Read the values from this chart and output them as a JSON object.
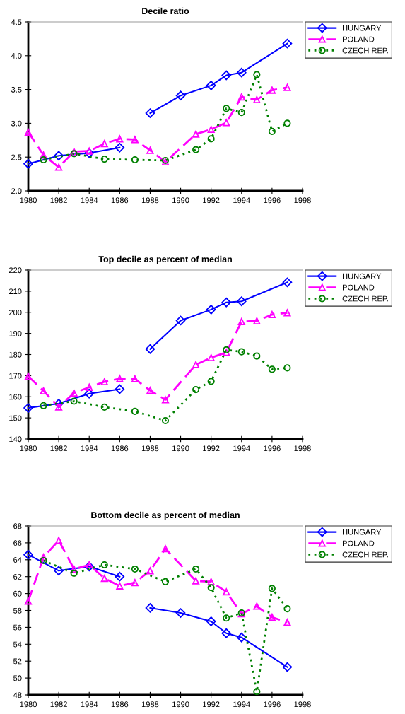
{
  "chart_data": [
    {
      "type": "line",
      "title": "Decile ratio",
      "xlim": [
        1980,
        1998
      ],
      "xticks": [
        1980,
        1982,
        1984,
        1986,
        1988,
        1990,
        1992,
        1994,
        1996,
        1998
      ],
      "ylim": [
        2.0,
        4.5
      ],
      "yticks": [
        {
          "value": 2.0,
          "label": "2.0"
        },
        {
          "value": 2.5,
          "label": "2.5"
        },
        {
          "value": 3.0,
          "label": "3.0"
        },
        {
          "value": 3.5,
          "label": "3.5"
        },
        {
          "value": 4.0,
          "label": "4.0"
        },
        {
          "value": 4.5,
          "label": "4.5"
        }
      ],
      "grid": false,
      "legend": "right",
      "series": [
        {
          "name": "HUNGARY",
          "color": "#0000ff",
          "marker": "diamond",
          "line_style": "solid",
          "x": [
            1980,
            1982,
            1984,
            1986,
            1987,
            1988,
            1990,
            1992,
            1993,
            1994,
            1997
          ],
          "values": [
            2.4,
            2.52,
            2.56,
            2.64,
            null,
            3.15,
            3.41,
            3.56,
            3.71,
            3.75,
            4.18
          ]
        },
        {
          "name": "POLAND",
          "color": "#ff00ff",
          "marker": "triangle",
          "line_style": "dashed",
          "x": [
            1980,
            1981,
            1982,
            1983,
            1984,
            1985,
            1986,
            1987,
            1988,
            1989,
            1991,
            1992,
            1993,
            1994,
            1995,
            1996,
            1997
          ],
          "values": [
            2.87,
            2.53,
            2.35,
            2.58,
            2.59,
            2.7,
            2.77,
            2.76,
            2.6,
            2.43,
            2.84,
            2.91,
            3.01,
            3.39,
            3.35,
            3.49,
            3.53
          ]
        },
        {
          "name": "CZECH REP.",
          "color": "#008000",
          "marker": "circle",
          "line_style": "dotted",
          "x": [
            1981,
            1983,
            1985,
            1987,
            1989,
            1991,
            1992,
            1993,
            1994,
            1995,
            1996,
            1997
          ],
          "values": [
            2.46,
            2.55,
            2.47,
            2.46,
            2.45,
            2.61,
            2.77,
            3.22,
            3.16,
            3.72,
            2.88,
            3.0
          ]
        }
      ]
    },
    {
      "type": "line",
      "title": "Top decile as percent of median",
      "xlim": [
        1980,
        1998
      ],
      "xticks": [
        1980,
        1982,
        1984,
        1986,
        1988,
        1990,
        1992,
        1994,
        1996,
        1998
      ],
      "ylim": [
        140,
        220
      ],
      "yticks": [
        140,
        150,
        160,
        170,
        180,
        190,
        200,
        210,
        220
      ],
      "grid": false,
      "legend": "right",
      "series": [
        {
          "name": "HUNGARY",
          "color": "#0000ff",
          "marker": "diamond",
          "line_style": "solid",
          "x": [
            1980,
            1982,
            1984,
            1986,
            1987,
            1988,
            1990,
            1992,
            1993,
            1994,
            1997
          ],
          "values": [
            154.7,
            156.8,
            161.5,
            163.6,
            null,
            182.6,
            196.1,
            201.3,
            204.7,
            205.2,
            214.2
          ]
        },
        {
          "name": "POLAND",
          "color": "#ff00ff",
          "marker": "triangle",
          "line_style": "dashed",
          "x": [
            1980,
            1981,
            1982,
            1983,
            1984,
            1985,
            1986,
            1987,
            1988,
            1989,
            1991,
            1992,
            1993,
            1994,
            1995,
            1996,
            1997
          ],
          "values": [
            169.7,
            162.8,
            155.2,
            161.8,
            164.5,
            167.1,
            168.6,
            168.5,
            163.0,
            158.6,
            175.2,
            178.5,
            181.0,
            195.6,
            195.9,
            198.9,
            199.8
          ]
        },
        {
          "name": "CZECH REP.",
          "color": "#008000",
          "marker": "circle",
          "line_style": "dotted",
          "x": [
            1981,
            1983,
            1985,
            1987,
            1989,
            1991,
            1992,
            1993,
            1994,
            1995,
            1996,
            1997
          ],
          "values": [
            155.8,
            157.9,
            155.1,
            153.1,
            148.7,
            163.4,
            167.3,
            182.2,
            181.3,
            179.3,
            173.0,
            173.7
          ]
        }
      ]
    },
    {
      "type": "line",
      "title": "Bottom decile as percent of median",
      "xlim": [
        1980,
        1998
      ],
      "xticks": [
        1980,
        1982,
        1984,
        1986,
        1988,
        1990,
        1992,
        1994,
        1996,
        1998
      ],
      "ylim": [
        48,
        68
      ],
      "yticks": [
        48,
        50,
        52,
        54,
        56,
        58,
        60,
        62,
        64,
        66,
        68
      ],
      "grid": false,
      "legend": "right",
      "series": [
        {
          "name": "HUNGARY",
          "color": "#0000ff",
          "marker": "diamond",
          "line_style": "solid",
          "x": [
            1980,
            1982,
            1984,
            1986,
            1987,
            1988,
            1990,
            1992,
            1993,
            1994,
            1997
          ],
          "values": [
            64.6,
            62.7,
            63.2,
            62.0,
            null,
            58.3,
            57.7,
            56.7,
            55.3,
            54.8,
            51.3
          ]
        },
        {
          "name": "POLAND",
          "color": "#ff00ff",
          "marker": "triangle",
          "line_style": "dashed",
          "x": [
            1980,
            1981,
            1982,
            1983,
            1984,
            1985,
            1986,
            1987,
            1988,
            1989,
            1991,
            1992,
            1993,
            1994,
            1995,
            1996,
            1997
          ],
          "values": [
            59.1,
            64.3,
            66.3,
            62.9,
            63.4,
            61.8,
            60.9,
            61.3,
            62.7,
            65.3,
            61.5,
            61.4,
            60.2,
            57.6,
            58.5,
            57.2,
            56.6
          ]
        },
        {
          "name": "CZECH REP.",
          "color": "#008000",
          "marker": "circle",
          "line_style": "dotted",
          "x": [
            1981,
            1983,
            1985,
            1987,
            1989,
            1991,
            1992,
            1993,
            1994,
            1995,
            1996,
            1997
          ],
          "values": [
            63.9,
            62.4,
            63.4,
            62.9,
            61.4,
            62.9,
            60.7,
            57.1,
            57.7,
            48.4,
            60.6,
            58.2
          ]
        }
      ]
    }
  ]
}
